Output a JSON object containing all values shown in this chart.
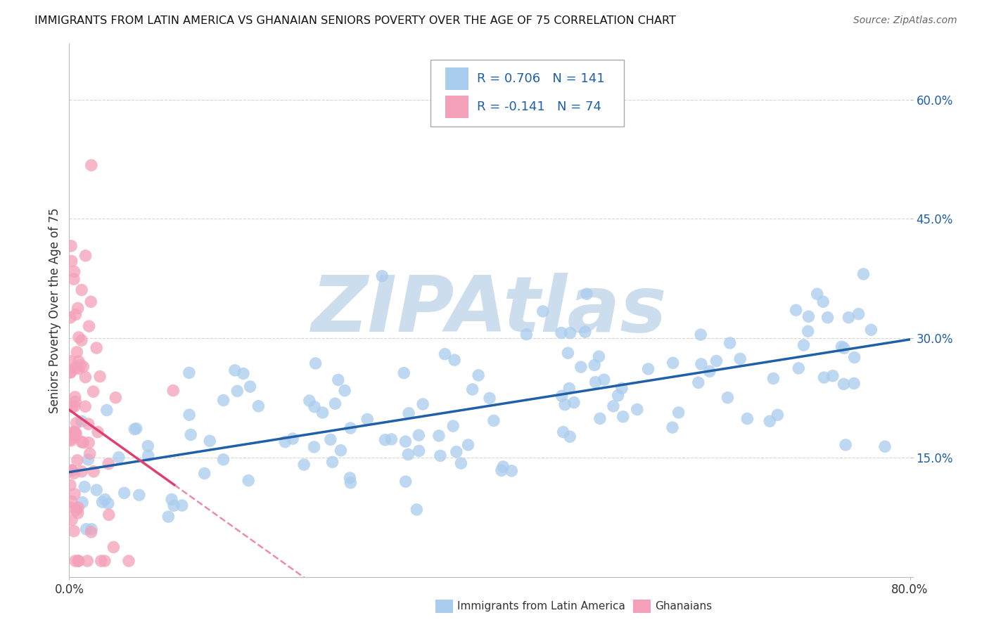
{
  "title": "IMMIGRANTS FROM LATIN AMERICA VS GHANAIAN SENIORS POVERTY OVER THE AGE OF 75 CORRELATION CHART",
  "source": "Source: ZipAtlas.com",
  "ylabel": "Seniors Poverty Over the Age of 75",
  "xlim": [
    0.0,
    0.8
  ],
  "ylim": [
    0.0,
    0.67
  ],
  "ytick_positions": [
    0.0,
    0.15,
    0.3,
    0.45,
    0.6
  ],
  "yticklabels": [
    "",
    "15.0%",
    "30.0%",
    "45.0%",
    "60.0%"
  ],
  "blue_R": 0.706,
  "blue_N": 141,
  "pink_R": -0.141,
  "pink_N": 74,
  "blue_color": "#aaccee",
  "pink_color": "#f4a0b8",
  "blue_line_color": "#2060a8",
  "pink_line_color": "#e04070",
  "watermark": "ZIPAtlas",
  "watermark_color": "#ccdded",
  "legend_label_blue": "Immigrants from Latin America",
  "legend_label_pink": "Ghanaians",
  "blue_seed": 12,
  "pink_seed": 77,
  "grid_color": "#cccccc"
}
